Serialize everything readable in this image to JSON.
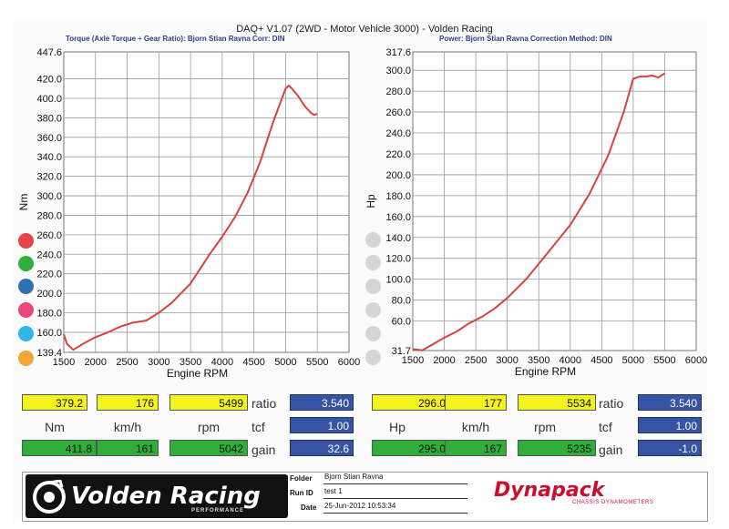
{
  "header": {
    "title": "DAQ+ V1.07 (2WD - Motor Vehicle 3000) - Volden Racing",
    "left_subtitle": "Torque (Axle Torque ÷ Gear Ratio): Bjorn Stian Ravna      Corr: DIN",
    "right_subtitle": "Power: Bjorn Stian Ravna      Correction Method: DIN"
  },
  "colors": {
    "curve": "#d9403f",
    "grid": "#9a9a9a",
    "dot_red": "#e8424b",
    "dot_green": "#2fae3c",
    "dot_blue": "#2f6fb3",
    "dot_pink": "#e6477f",
    "dot_cyan": "#2fb7ea",
    "dot_orange": "#f4a53a",
    "dot_gray": "#d5d5d5"
  },
  "chart_data": [
    {
      "type": "line",
      "ylabel": "Nm",
      "xlabel": "Engine RPM",
      "xlim": [
        1500,
        6000
      ],
      "ylim": [
        139.4,
        447.6
      ],
      "x_ticks": [
        "1500",
        "2000",
        "2500",
        "3000",
        "3500",
        "4000",
        "4500",
        "5000",
        "5500",
        "6000"
      ],
      "y_ticks": [
        "139.4",
        "160.0",
        "180.0",
        "200.0",
        "220.0",
        "240.0",
        "260.0",
        "280.0",
        "300.0",
        "320.0",
        "340.0",
        "360.0",
        "380.0",
        "400.0",
        "420.0",
        "447.6"
      ],
      "grid": true,
      "series": [
        {
          "x": [
            1500,
            1550,
            1650,
            1800,
            2000,
            2200,
            2400,
            2600,
            2800,
            3000,
            3200,
            3500,
            3800,
            4000,
            4200,
            4400,
            4600,
            4800,
            5000,
            5050,
            5100,
            5200,
            5300,
            5400,
            5450,
            5500
          ],
          "y": [
            158,
            148,
            142,
            148,
            155,
            160,
            166,
            170,
            172,
            180,
            190,
            210,
            240,
            258,
            278,
            303,
            335,
            375,
            410,
            413,
            410,
            402,
            392,
            385,
            383,
            384
          ]
        }
      ]
    },
    {
      "type": "line",
      "ylabel": "Hp",
      "xlabel": "Engine RPM",
      "xlim": [
        1500,
        6000
      ],
      "ylim": [
        31.7,
        317.6
      ],
      "x_ticks": [
        "1500",
        "2000",
        "2500",
        "3000",
        "3500",
        "4000",
        "4500",
        "5000",
        "5500",
        "6000"
      ],
      "y_ticks": [
        "31.7",
        "60.0",
        "80.0",
        "100.0",
        "120.0",
        "140.0",
        "160.0",
        "180.0",
        "200.0",
        "220.0",
        "240.0",
        "260.0",
        "280.0",
        "300.0",
        "317.6"
      ],
      "grid": true,
      "series": [
        {
          "x": [
            1500,
            1650,
            1800,
            2000,
            2200,
            2400,
            2600,
            2800,
            3000,
            3300,
            3600,
            4000,
            4300,
            4600,
            4850,
            5000,
            5100,
            5200,
            5300,
            5400,
            5500
          ],
          "y": [
            33,
            32,
            37,
            44,
            50,
            58,
            64,
            72,
            82,
            100,
            122,
            152,
            181,
            218,
            260,
            292,
            294,
            294,
            295,
            293,
            297
          ]
        }
      ]
    }
  ],
  "readout_left": {
    "top_values": [
      "379.2",
      "176",
      "5499"
    ],
    "units": [
      "Nm",
      "km/h",
      "rpm"
    ],
    "bottom_values": [
      "411.8",
      "161",
      "5042"
    ],
    "ratio_label": "ratio",
    "ratio_value": "3.540",
    "tcf_label": "tcf",
    "tcf_value": "1.00",
    "gain_label": "gain",
    "gain_value": "32.6"
  },
  "readout_right": {
    "top_values": [
      "296.0",
      "177",
      "5534"
    ],
    "units": [
      "Hp",
      "km/h",
      "rpm"
    ],
    "bottom_values": [
      "295.0",
      "167",
      "5235"
    ],
    "ratio_label": "ratio",
    "ratio_value": "3.540",
    "tcf_label": "tcf",
    "tcf_value": "1.00",
    "gain_label": "gain",
    "gain_value": "-1.0"
  },
  "footer": {
    "logo_text": "Volden Racing",
    "logo_sub": "PERFORMANCE",
    "folder_label": "Folder",
    "folder_value": "Bjorn Stian Ravna",
    "runid_label": "Run ID",
    "runid_value": "test 1",
    "date_label": "Date",
    "date_value": "25-Jun-2012 10:53:34",
    "brand_text": "Dynapack",
    "brand_sub": "CHASSIS DYNAMOMETERS"
  }
}
